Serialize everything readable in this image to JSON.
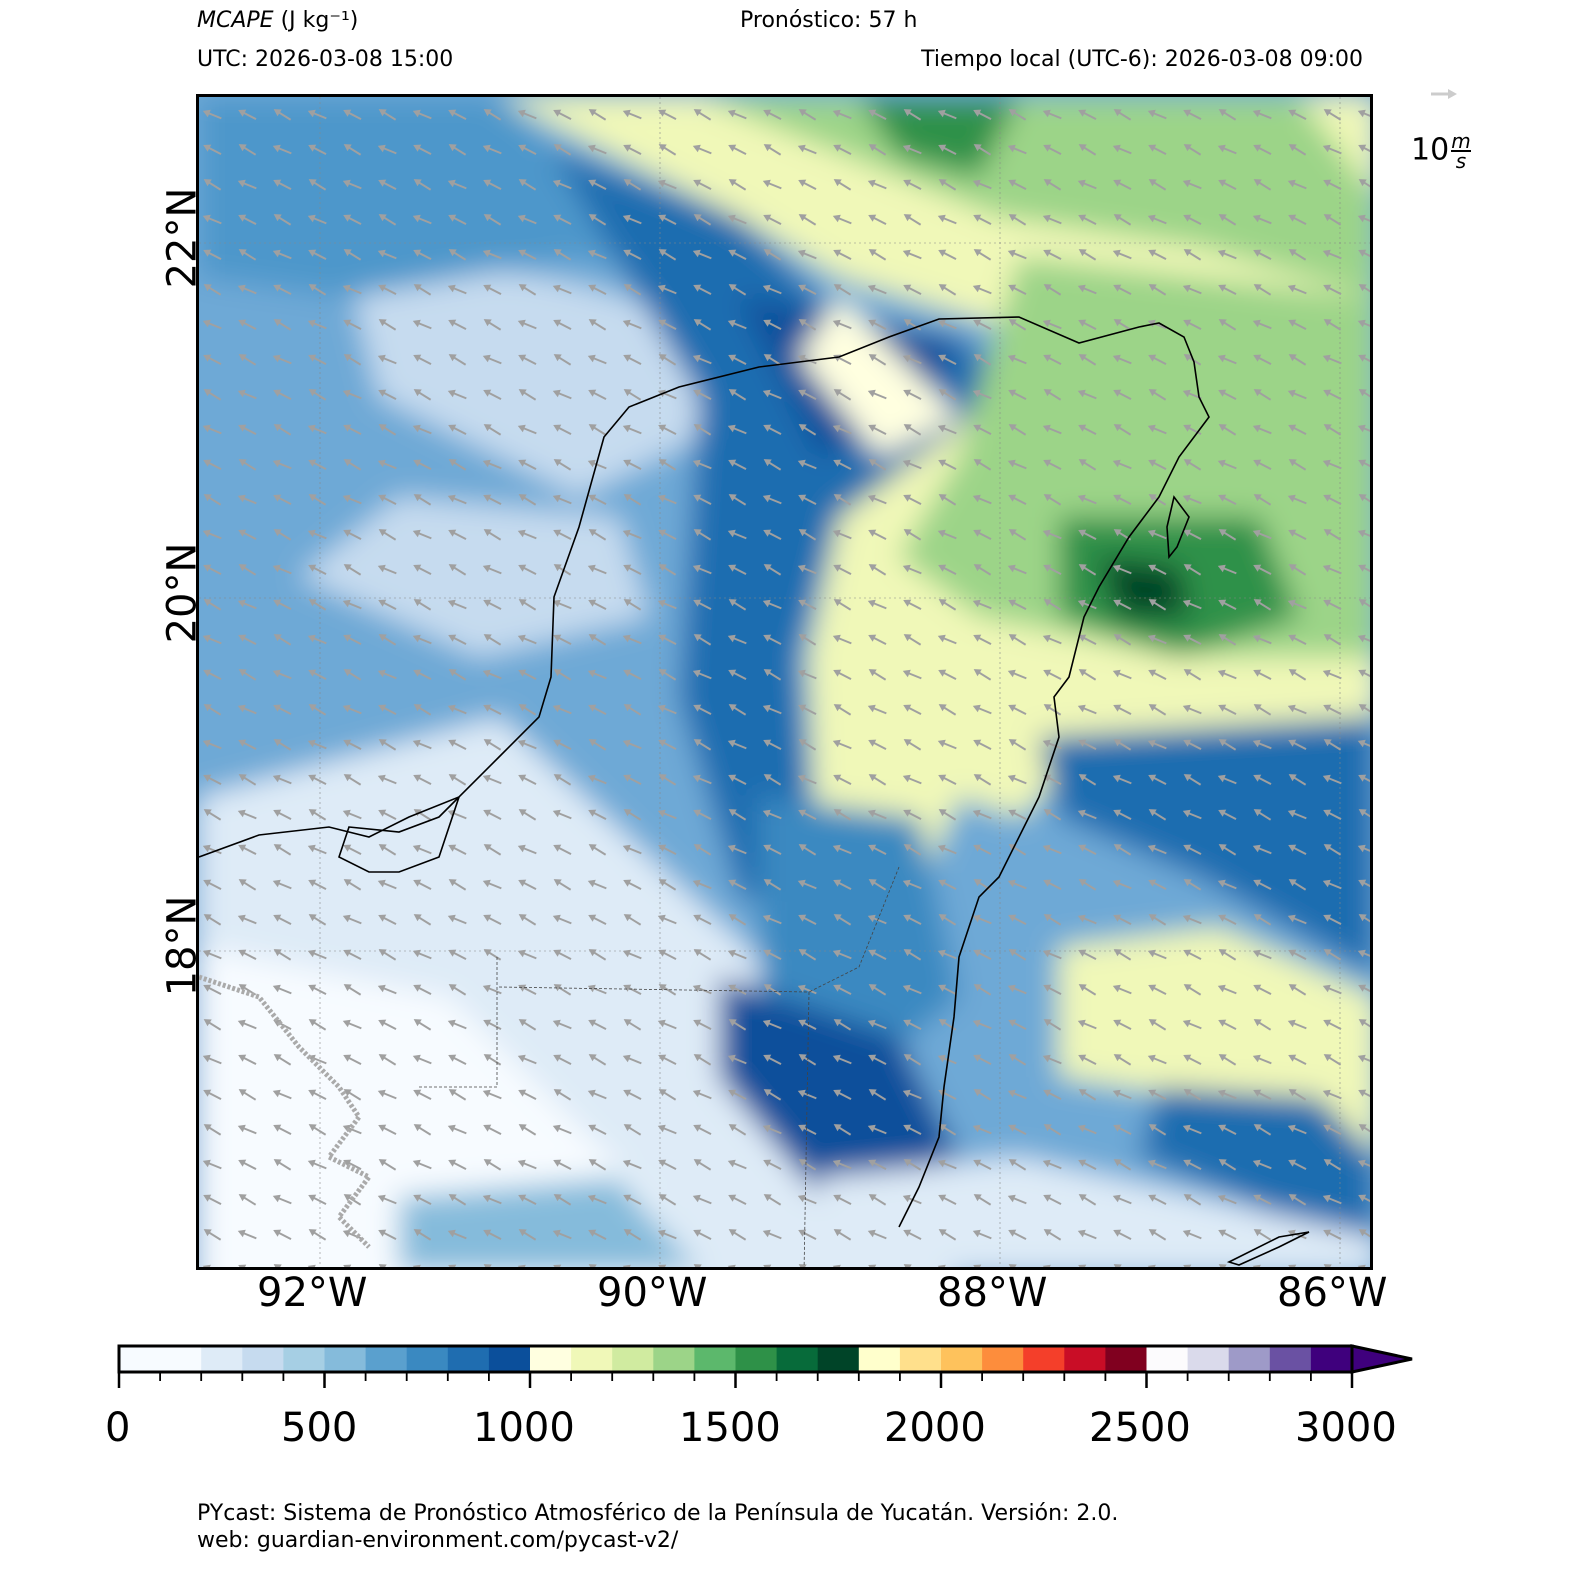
{
  "header": {
    "variable": "MCAPE",
    "units_label": "(J kg⁻¹)",
    "forecast": "Pronóstico: 57 h",
    "utc": "UTC:  2026-03-08 15:00",
    "local_time": "Tiempo local (UTC-6): 2026-03-08 09:00"
  },
  "map": {
    "lon_ticks": [
      "92°W",
      "90°W",
      "88°W",
      "86°W"
    ],
    "lat_ticks": [
      "22°N",
      "20°N",
      "18°N"
    ],
    "lon_range": [
      -92.71,
      -85.79
    ],
    "lat_range": [
      16.18,
      22.82
    ],
    "wind_reference": {
      "value": "10",
      "units_num": "m",
      "units_den": "s"
    },
    "wind_arrow_color": "#a0a0a0"
  },
  "colorbar": {
    "ticks": [
      "0",
      "500",
      "1000",
      "1500",
      "2000",
      "2500",
      "3000"
    ],
    "min": 0,
    "max": 3000,
    "extend": "max",
    "bounds": [
      0,
      200,
      300,
      400,
      500,
      600,
      700,
      800,
      900,
      1000,
      1100,
      1200,
      1300,
      1400,
      1500,
      1600,
      1700,
      1800,
      1900,
      2000,
      2100,
      2200,
      2300,
      2400,
      2500,
      2600,
      2700,
      2800,
      2900,
      3000
    ],
    "colors": [
      "#f7fbff",
      "#deebf7",
      "#c6dbef",
      "#a6cfe4",
      "#85bbdb",
      "#5aa0ce",
      "#3a89c1",
      "#1f6db0",
      "#0b4f9b",
      "#ffffe0",
      "#f0f8b8",
      "#d0eba0",
      "#9cd488",
      "#5cb86c",
      "#2e9148",
      "#076b3a",
      "#004428",
      "#ffffcc",
      "#ffe08c",
      "#fec25c",
      "#fd8d3c",
      "#f43f2a",
      "#c90d26",
      "#80001f",
      "#fcfbfd",
      "#dadaeb",
      "#9e9ac8",
      "#6a51a3",
      "#3f007d"
    ],
    "extend_color": "#3f007d"
  },
  "footer": {
    "line1": "PYcast: Sistema de Pronóstico Atmosférico de la Península de Yucatán. Versión: 2.0.",
    "line2": "web: guardian-environment.com/pycast-v2/"
  }
}
